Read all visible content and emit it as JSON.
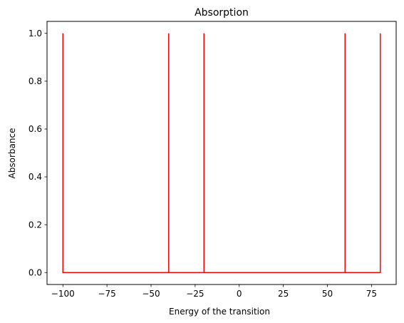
{
  "chart_data": {
    "type": "line",
    "title": "Absorption",
    "xlabel": "Energy of the transition",
    "ylabel": "Absorbance",
    "xlim": [
      -109,
      89
    ],
    "ylim": [
      -0.05,
      1.05
    ],
    "xticks": [
      -100,
      -75,
      -50,
      -25,
      0,
      25,
      50,
      75
    ],
    "xtick_labels": [
      "−100",
      "−75",
      "−50",
      "−25",
      "0",
      "25",
      "50",
      "75"
    ],
    "yticks": [
      0.0,
      0.2,
      0.4,
      0.6,
      0.8,
      1.0
    ],
    "ytick_labels": [
      "0.0",
      "0.2",
      "0.4",
      "0.6",
      "0.8",
      "1.0"
    ],
    "grid": false,
    "series": [
      {
        "color": "#ff0000",
        "x": [
          -100,
          -100,
          -100,
          -40,
          -40,
          -40,
          -20,
          -20,
          -20,
          60,
          60,
          60,
          80,
          80
        ],
        "y": [
          1,
          0,
          0,
          0,
          1,
          0,
          0,
          1,
          0,
          0,
          1,
          0,
          0,
          1
        ]
      }
    ]
  }
}
